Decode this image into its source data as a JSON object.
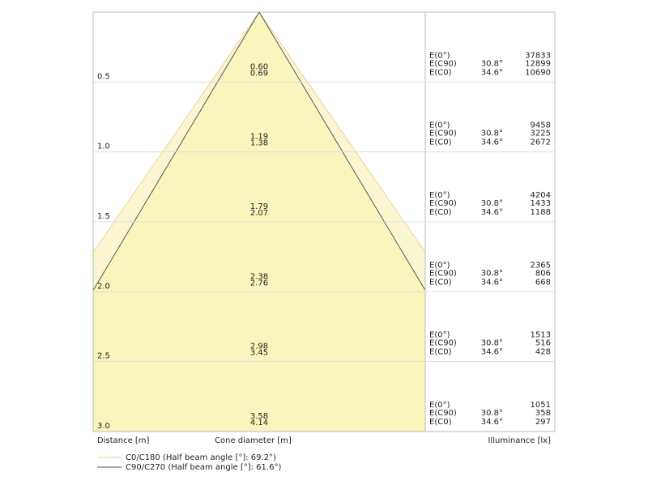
{
  "header": {
    "distance_label": "Distance [m]",
    "diameter_label": "Cone diameter [m]",
    "illuminance_label": "Illuminance [lx]"
  },
  "rows": [
    {
      "distance": "0.5",
      "diameters": [
        "0.60",
        "0.69"
      ],
      "e0_label": "E(0°)",
      "e0": "37833",
      "c90_label": "E(C90)",
      "c90_angle": "30.8°",
      "c90": "12899",
      "c0_label": "E(C0)",
      "c0_angle": "34.6°",
      "c0": "10690"
    },
    {
      "distance": "1.0",
      "diameters": [
        "1.19",
        "1.38"
      ],
      "e0_label": "E(0°)",
      "e0": "9458",
      "c90_label": "E(C90)",
      "c90_angle": "30.8°",
      "c90": "3225",
      "c0_label": "E(C0)",
      "c0_angle": "34.6°",
      "c0": "2672"
    },
    {
      "distance": "1.5",
      "diameters": [
        "1.79",
        "2.07"
      ],
      "e0_label": "E(0°)",
      "e0": "4204",
      "c90_label": "E(C90)",
      "c90_angle": "30.8°",
      "c90": "1433",
      "c0_label": "E(C0)",
      "c0_angle": "34.6°",
      "c0": "1188"
    },
    {
      "distance": "2.0",
      "diameters": [
        "2.38",
        "2.76"
      ],
      "e0_label": "E(0°)",
      "e0": "2365",
      "c90_label": "E(C90)",
      "c90_angle": "30.8°",
      "c90": "806",
      "c0_label": "E(C0)",
      "c0_angle": "34.6°",
      "c0": "668"
    },
    {
      "distance": "2.5",
      "diameters": [
        "2.98",
        "3.45"
      ],
      "e0_label": "E(0°)",
      "e0": "1513",
      "c90_label": "E(C90)",
      "c90_angle": "30.8°",
      "c90": "516",
      "c0_label": "E(C0)",
      "c0_angle": "34.6°",
      "c0": "428"
    },
    {
      "distance": "3.0",
      "diameters": [
        "3.58",
        "4.14"
      ],
      "e0_label": "E(0°)",
      "e0": "1051",
      "c90_label": "E(C90)",
      "c90_angle": "30.8°",
      "c90": "358",
      "c0_label": "E(C0)",
      "c0_angle": "34.6°",
      "c0": "297"
    }
  ],
  "legend": [
    "C0/C180 (Half beam angle [°]: 69.2°)",
    "C90/C270 (Half beam angle [°]: 61.6°)"
  ]
}
